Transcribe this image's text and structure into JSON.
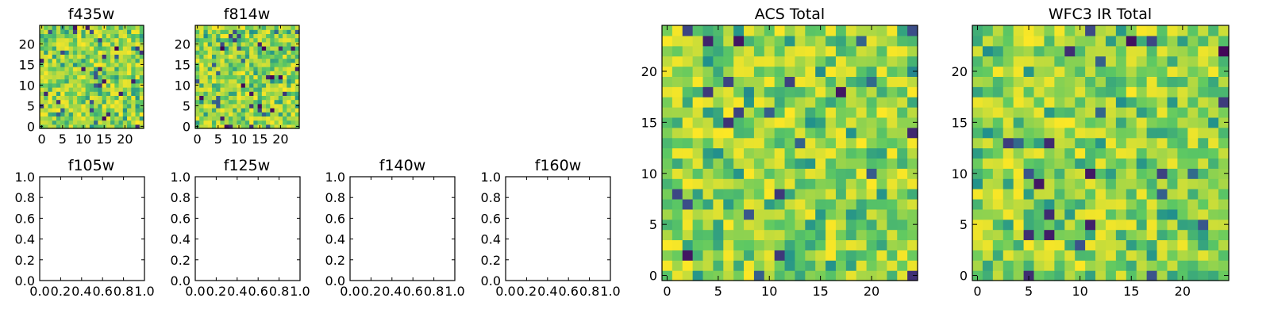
{
  "chart_data": [
    {
      "type": "heatmap",
      "title": "f435w",
      "shape": [
        25,
        25
      ],
      "xticks": [
        "0",
        "5",
        "10",
        "15",
        "20"
      ],
      "yticks": [
        "0",
        "5",
        "10",
        "15",
        "20"
      ],
      "colormap": "viridis",
      "seed": 17,
      "vmin": 0,
      "vmax": 1
    },
    {
      "type": "heatmap",
      "title": "f814w",
      "shape": [
        25,
        25
      ],
      "xticks": [
        "0",
        "5",
        "10",
        "15",
        "20"
      ],
      "yticks": [
        "0",
        "5",
        "10",
        "15",
        "20"
      ],
      "colormap": "viridis",
      "seed": 29,
      "vmin": 0,
      "vmax": 1
    },
    {
      "type": "empty",
      "title": "f105w",
      "xticks": [
        "0.0",
        "0.2",
        "0.4",
        "0.6",
        "0.8",
        "1.0"
      ],
      "yticks": [
        "0.0",
        "0.2",
        "0.4",
        "0.6",
        "0.8",
        "1.0"
      ],
      "xlim": [
        0,
        1
      ],
      "ylim": [
        0,
        1
      ]
    },
    {
      "type": "empty",
      "title": "f125w",
      "xticks": [
        "0.0",
        "0.2",
        "0.4",
        "0.6",
        "0.8",
        "1.0"
      ],
      "yticks": [
        "0.0",
        "0.2",
        "0.4",
        "0.6",
        "0.8",
        "1.0"
      ],
      "xlim": [
        0,
        1
      ],
      "ylim": [
        0,
        1
      ]
    },
    {
      "type": "empty",
      "title": "f140w",
      "xticks": [
        "0.0",
        "0.2",
        "0.4",
        "0.6",
        "0.8",
        "1.0"
      ],
      "yticks": [
        "0.0",
        "0.2",
        "0.4",
        "0.6",
        "0.8",
        "1.0"
      ],
      "xlim": [
        0,
        1
      ],
      "ylim": [
        0,
        1
      ]
    },
    {
      "type": "empty",
      "title": "f160w",
      "xticks": [
        "0.0",
        "0.2",
        "0.4",
        "0.6",
        "0.8",
        "1.0"
      ],
      "yticks": [
        "0.0",
        "0.2",
        "0.4",
        "0.6",
        "0.8",
        "1.0"
      ],
      "xlim": [
        0,
        1
      ],
      "ylim": [
        0,
        1
      ]
    },
    {
      "type": "heatmap",
      "title": "ACS Total",
      "shape": [
        25,
        25
      ],
      "xticks": [
        "0",
        "5",
        "10",
        "15",
        "20"
      ],
      "yticks": [
        "0",
        "5",
        "10",
        "15",
        "20"
      ],
      "colormap": "viridis",
      "seed": 41,
      "vmin": 0,
      "vmax": 1
    },
    {
      "type": "heatmap",
      "title": "WFC3 IR Total",
      "shape": [
        25,
        25
      ],
      "xticks": [
        "0",
        "5",
        "10",
        "15",
        "20"
      ],
      "yticks": [
        "0",
        "5",
        "10",
        "15",
        "20"
      ],
      "colormap": "viridis",
      "seed": 53,
      "vmin": 0,
      "vmax": 1
    }
  ],
  "colors": {
    "viridis": [
      "#440154",
      "#3b528b",
      "#21918c",
      "#5ec962",
      "#fde725"
    ],
    "frame": "#000000",
    "background": "#ffffff"
  }
}
